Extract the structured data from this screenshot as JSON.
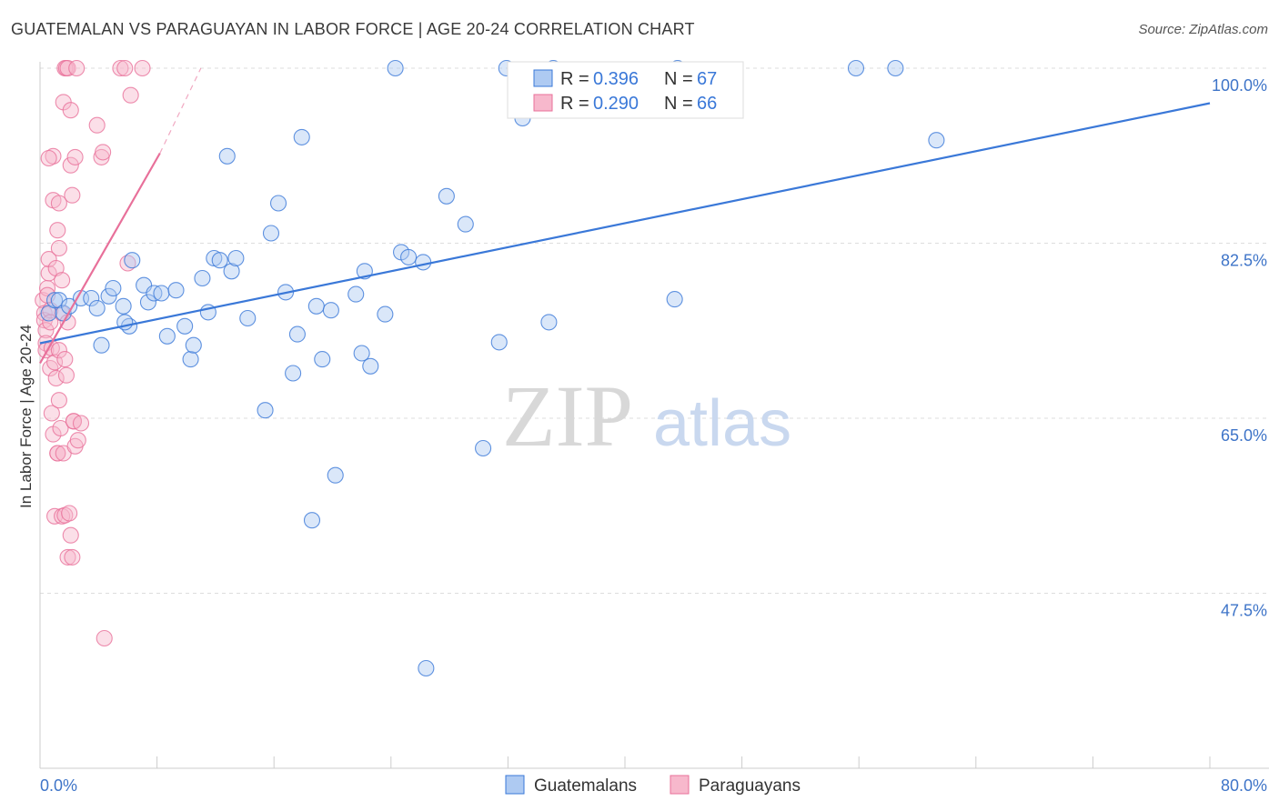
{
  "title": "GUATEMALAN VS PARAGUAYAN IN LABOR FORCE | AGE 20-24 CORRELATION CHART",
  "source": "Source: ZipAtlas.com",
  "watermark": {
    "zip": "ZIP",
    "atlas": "atlas"
  },
  "colors": {
    "blue": "#3a78d8",
    "blue_fill": "#aecaf2",
    "pink": "#e8709a",
    "pink_fill": "#f7b8cc",
    "tick": "#3e74c8",
    "grid": "#dddddd"
  },
  "legend": {
    "rows": [
      {
        "r_label": "R =",
        "r_value": "0.396",
        "n_label": "N =",
        "n_value": "67"
      },
      {
        "r_label": "R =",
        "r_value": "0.290",
        "n_label": "N =",
        "n_value": "66"
      }
    ]
  },
  "bottom_legend": {
    "items": [
      "Guatemalans",
      "Paraguayans"
    ]
  },
  "chart_data": {
    "type": "scatter",
    "title": "GUATEMALAN VS PARAGUAYAN IN LABOR FORCE | AGE 20-24 CORRELATION CHART",
    "xlabel": "",
    "ylabel": "In Labor Force | Age 20-24",
    "xlim": [
      0,
      80
    ],
    "ylim": [
      30,
      100
    ],
    "x_tick_labels": [
      "0.0%",
      "80.0%"
    ],
    "y_ticks": [
      47.5,
      65.0,
      82.5,
      100.0
    ],
    "y_tick_labels": [
      "47.5%",
      "65.0%",
      "82.5%",
      "100.0%"
    ],
    "grid": true,
    "legend_position": "top-center",
    "series": [
      {
        "name": "Guatemalans",
        "color": "#3a78d8",
        "r": 0.396,
        "n": 67,
        "trend": {
          "x0": 0.0,
          "y0": 72.5,
          "x1": 80.0,
          "y1": 96.5
        },
        "points": [
          [
            0.6,
            75.5
          ],
          [
            1.0,
            76.8
          ],
          [
            1.3,
            76.8
          ],
          [
            1.6,
            75.5
          ],
          [
            2.0,
            76.2
          ],
          [
            2.8,
            77.0
          ],
          [
            3.5,
            77.0
          ],
          [
            3.9,
            76.0
          ],
          [
            4.2,
            72.3
          ],
          [
            4.7,
            77.2
          ],
          [
            5.0,
            78.0
          ],
          [
            5.7,
            76.2
          ],
          [
            6.1,
            74.2
          ],
          [
            6.3,
            80.8
          ],
          [
            7.1,
            78.3
          ],
          [
            7.4,
            76.6
          ],
          [
            7.8,
            77.5
          ],
          [
            8.3,
            77.5
          ],
          [
            8.7,
            73.2
          ],
          [
            9.3,
            77.8
          ],
          [
            9.9,
            74.2
          ],
          [
            10.3,
            70.9
          ],
          [
            10.5,
            72.3
          ],
          [
            11.1,
            79.0
          ],
          [
            11.5,
            75.6
          ],
          [
            11.9,
            81.0
          ],
          [
            12.3,
            80.8
          ],
          [
            12.8,
            91.2
          ],
          [
            13.1,
            79.7
          ],
          [
            13.4,
            81.0
          ],
          [
            14.2,
            75.0
          ],
          [
            15.4,
            65.8
          ],
          [
            15.8,
            83.5
          ],
          [
            16.3,
            86.5
          ],
          [
            16.8,
            77.6
          ],
          [
            17.3,
            69.5
          ],
          [
            17.6,
            73.4
          ],
          [
            17.9,
            93.1
          ],
          [
            18.6,
            54.8
          ],
          [
            18.9,
            76.2
          ],
          [
            19.3,
            70.9
          ],
          [
            19.9,
            75.8
          ],
          [
            20.2,
            59.3
          ],
          [
            21.6,
            77.4
          ],
          [
            22.0,
            71.5
          ],
          [
            22.2,
            79.7
          ],
          [
            22.6,
            70.2
          ],
          [
            23.6,
            75.4
          ],
          [
            24.7,
            81.6
          ],
          [
            25.2,
            81.1
          ],
          [
            26.2,
            80.6
          ],
          [
            26.4,
            40.0
          ],
          [
            27.8,
            87.2
          ],
          [
            29.1,
            84.4
          ],
          [
            30.3,
            62.0
          ],
          [
            31.4,
            72.6
          ],
          [
            31.9,
            100.0
          ],
          [
            33.0,
            95.0
          ],
          [
            34.8,
            74.6
          ],
          [
            35.1,
            100.0
          ],
          [
            43.4,
            76.9
          ],
          [
            43.6,
            100.0
          ],
          [
            55.8,
            100.0
          ],
          [
            58.5,
            100.0
          ],
          [
            61.3,
            92.8
          ],
          [
            24.3,
            100.0
          ],
          [
            5.8,
            74.6
          ]
        ]
      },
      {
        "name": "Paraguayans",
        "color": "#e8709a",
        "r": 0.29,
        "n": 66,
        "trend": {
          "x0": 0.0,
          "y0": 70.5,
          "x1": 8.2,
          "y1": 91.5,
          "dash_x1": 11.0,
          "dash_y1": 100.0
        },
        "points": [
          [
            0.2,
            76.8
          ],
          [
            0.3,
            75.5
          ],
          [
            0.3,
            74.8
          ],
          [
            0.4,
            73.8
          ],
          [
            0.4,
            72.5
          ],
          [
            0.4,
            71.8
          ],
          [
            0.5,
            78.0
          ],
          [
            0.5,
            77.3
          ],
          [
            0.6,
            79.5
          ],
          [
            0.6,
            80.9
          ],
          [
            0.7,
            75.8
          ],
          [
            0.7,
            74.6
          ],
          [
            0.7,
            70.0
          ],
          [
            0.8,
            72.0
          ],
          [
            0.8,
            65.5
          ],
          [
            0.9,
            63.4
          ],
          [
            0.9,
            86.8
          ],
          [
            0.9,
            91.2
          ],
          [
            1.0,
            55.2
          ],
          [
            1.0,
            70.6
          ],
          [
            1.1,
            80.0
          ],
          [
            1.1,
            69.0
          ],
          [
            1.2,
            61.5
          ],
          [
            1.2,
            61.5
          ],
          [
            1.3,
            82.0
          ],
          [
            1.3,
            86.5
          ],
          [
            1.3,
            71.8
          ],
          [
            1.3,
            66.8
          ],
          [
            1.4,
            64.0
          ],
          [
            1.5,
            55.2
          ],
          [
            1.5,
            75.5
          ],
          [
            1.5,
            78.8
          ],
          [
            1.6,
            61.5
          ],
          [
            1.6,
            96.6
          ],
          [
            1.7,
            70.9
          ],
          [
            1.7,
            55.3
          ],
          [
            1.7,
            100.0
          ],
          [
            1.8,
            69.3
          ],
          [
            1.8,
            100.0
          ],
          [
            1.9,
            100.0
          ],
          [
            1.9,
            74.6
          ],
          [
            1.9,
            51.1
          ],
          [
            2.0,
            55.5
          ],
          [
            2.1,
            53.3
          ],
          [
            2.1,
            90.3
          ],
          [
            2.1,
            95.8
          ],
          [
            2.2,
            87.3
          ],
          [
            2.2,
            51.1
          ],
          [
            2.3,
            64.7
          ],
          [
            2.3,
            64.7
          ],
          [
            2.4,
            91.1
          ],
          [
            2.4,
            62.2
          ],
          [
            2.5,
            100.0
          ],
          [
            2.6,
            62.8
          ],
          [
            2.8,
            64.5
          ],
          [
            3.9,
            94.3
          ],
          [
            4.2,
            91.1
          ],
          [
            4.3,
            91.6
          ],
          [
            4.4,
            43.0
          ],
          [
            5.5,
            100.0
          ],
          [
            5.8,
            100.0
          ],
          [
            6.0,
            80.5
          ],
          [
            6.2,
            97.3
          ],
          [
            7.0,
            100.0
          ],
          [
            0.6,
            91.0
          ],
          [
            1.2,
            83.8
          ]
        ]
      }
    ]
  }
}
